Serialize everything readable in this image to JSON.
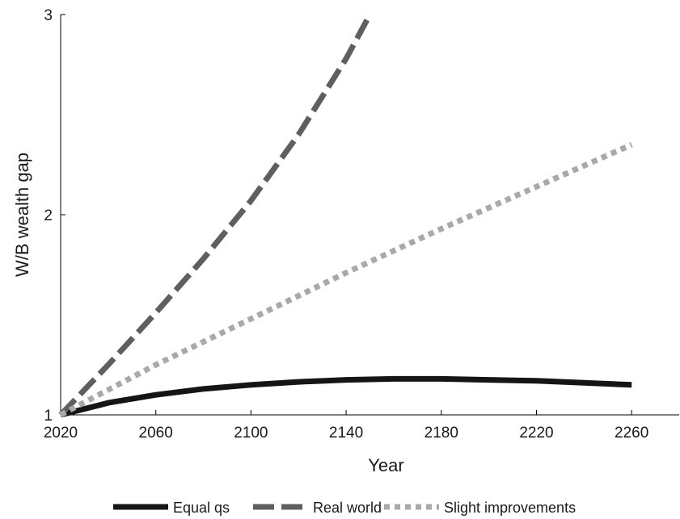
{
  "chart_data": {
    "type": "line",
    "xlabel": "Year",
    "ylabel": "W/B wealth gap",
    "xlim": [
      2020,
      2280
    ],
    "ylim": [
      1,
      3
    ],
    "xticks": [
      "2020",
      "2060",
      "2100",
      "2140",
      "2180",
      "2220",
      "2260"
    ],
    "yticks": [
      "1",
      "2",
      "3"
    ],
    "grid": false,
    "legend_position": "bottom",
    "series": [
      {
        "name": "Equal qs",
        "style": "solid",
        "color": "#151515",
        "x": [
          2020,
          2030,
          2040,
          2060,
          2080,
          2100,
          2120,
          2140,
          2160,
          2180,
          2200,
          2220,
          2240,
          2260
        ],
        "y": [
          1.0,
          1.03,
          1.06,
          1.1,
          1.13,
          1.15,
          1.165,
          1.175,
          1.18,
          1.18,
          1.175,
          1.17,
          1.16,
          1.15
        ]
      },
      {
        "name": "Real world",
        "style": "dashed",
        "color": "#5f5f5f",
        "x": [
          2020,
          2040,
          2060,
          2080,
          2100,
          2120,
          2140,
          2150
        ],
        "y": [
          1.0,
          1.25,
          1.51,
          1.78,
          2.07,
          2.4,
          2.78,
          3.0
        ]
      },
      {
        "name": "Slight improvements",
        "style": "dotted",
        "color": "#a9a9a9",
        "x": [
          2020,
          2060,
          2100,
          2140,
          2180,
          2220,
          2260
        ],
        "y": [
          1.0,
          1.25,
          1.48,
          1.71,
          1.93,
          2.14,
          2.35
        ]
      }
    ]
  }
}
